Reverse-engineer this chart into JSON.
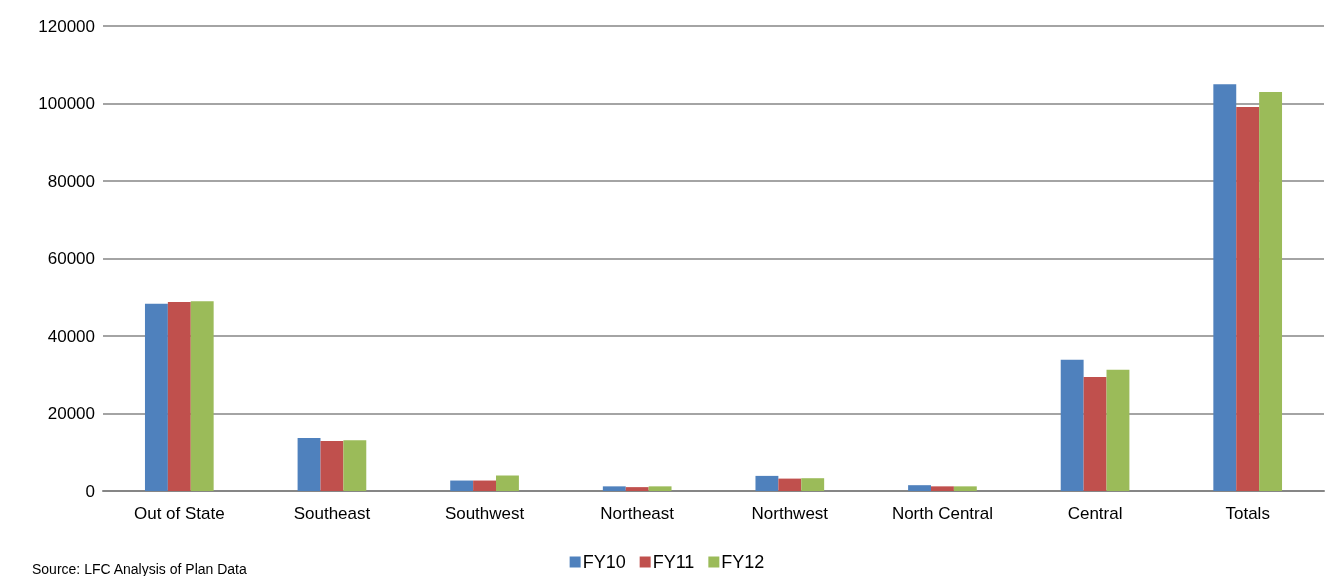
{
  "chart_data": {
    "type": "bar",
    "categories": [
      "Out of State",
      "Southeast",
      "Southwest",
      "Northeast",
      "Northwest",
      "North Central",
      "Central",
      "Totals"
    ],
    "series": [
      {
        "name": "FY10",
        "color": "#4f81bd",
        "values": [
          48300,
          13700,
          2700,
          1200,
          3900,
          1500,
          33900,
          105000
        ]
      },
      {
        "name": "FY11",
        "color": "#c0504d",
        "values": [
          48800,
          12900,
          2700,
          1000,
          3200,
          1200,
          29400,
          99100
        ]
      },
      {
        "name": "FY12",
        "color": "#9bbb59",
        "values": [
          49000,
          13100,
          4000,
          1200,
          3300,
          1200,
          31300,
          103000
        ]
      }
    ],
    "ylim": [
      0,
      120000
    ],
    "yticks": [
      0,
      20000,
      40000,
      60000,
      80000,
      100000,
      120000
    ],
    "grid": "y",
    "legend": "bottom",
    "annotations": [
      "Source: LFC Analysis of Plan Data"
    ]
  }
}
